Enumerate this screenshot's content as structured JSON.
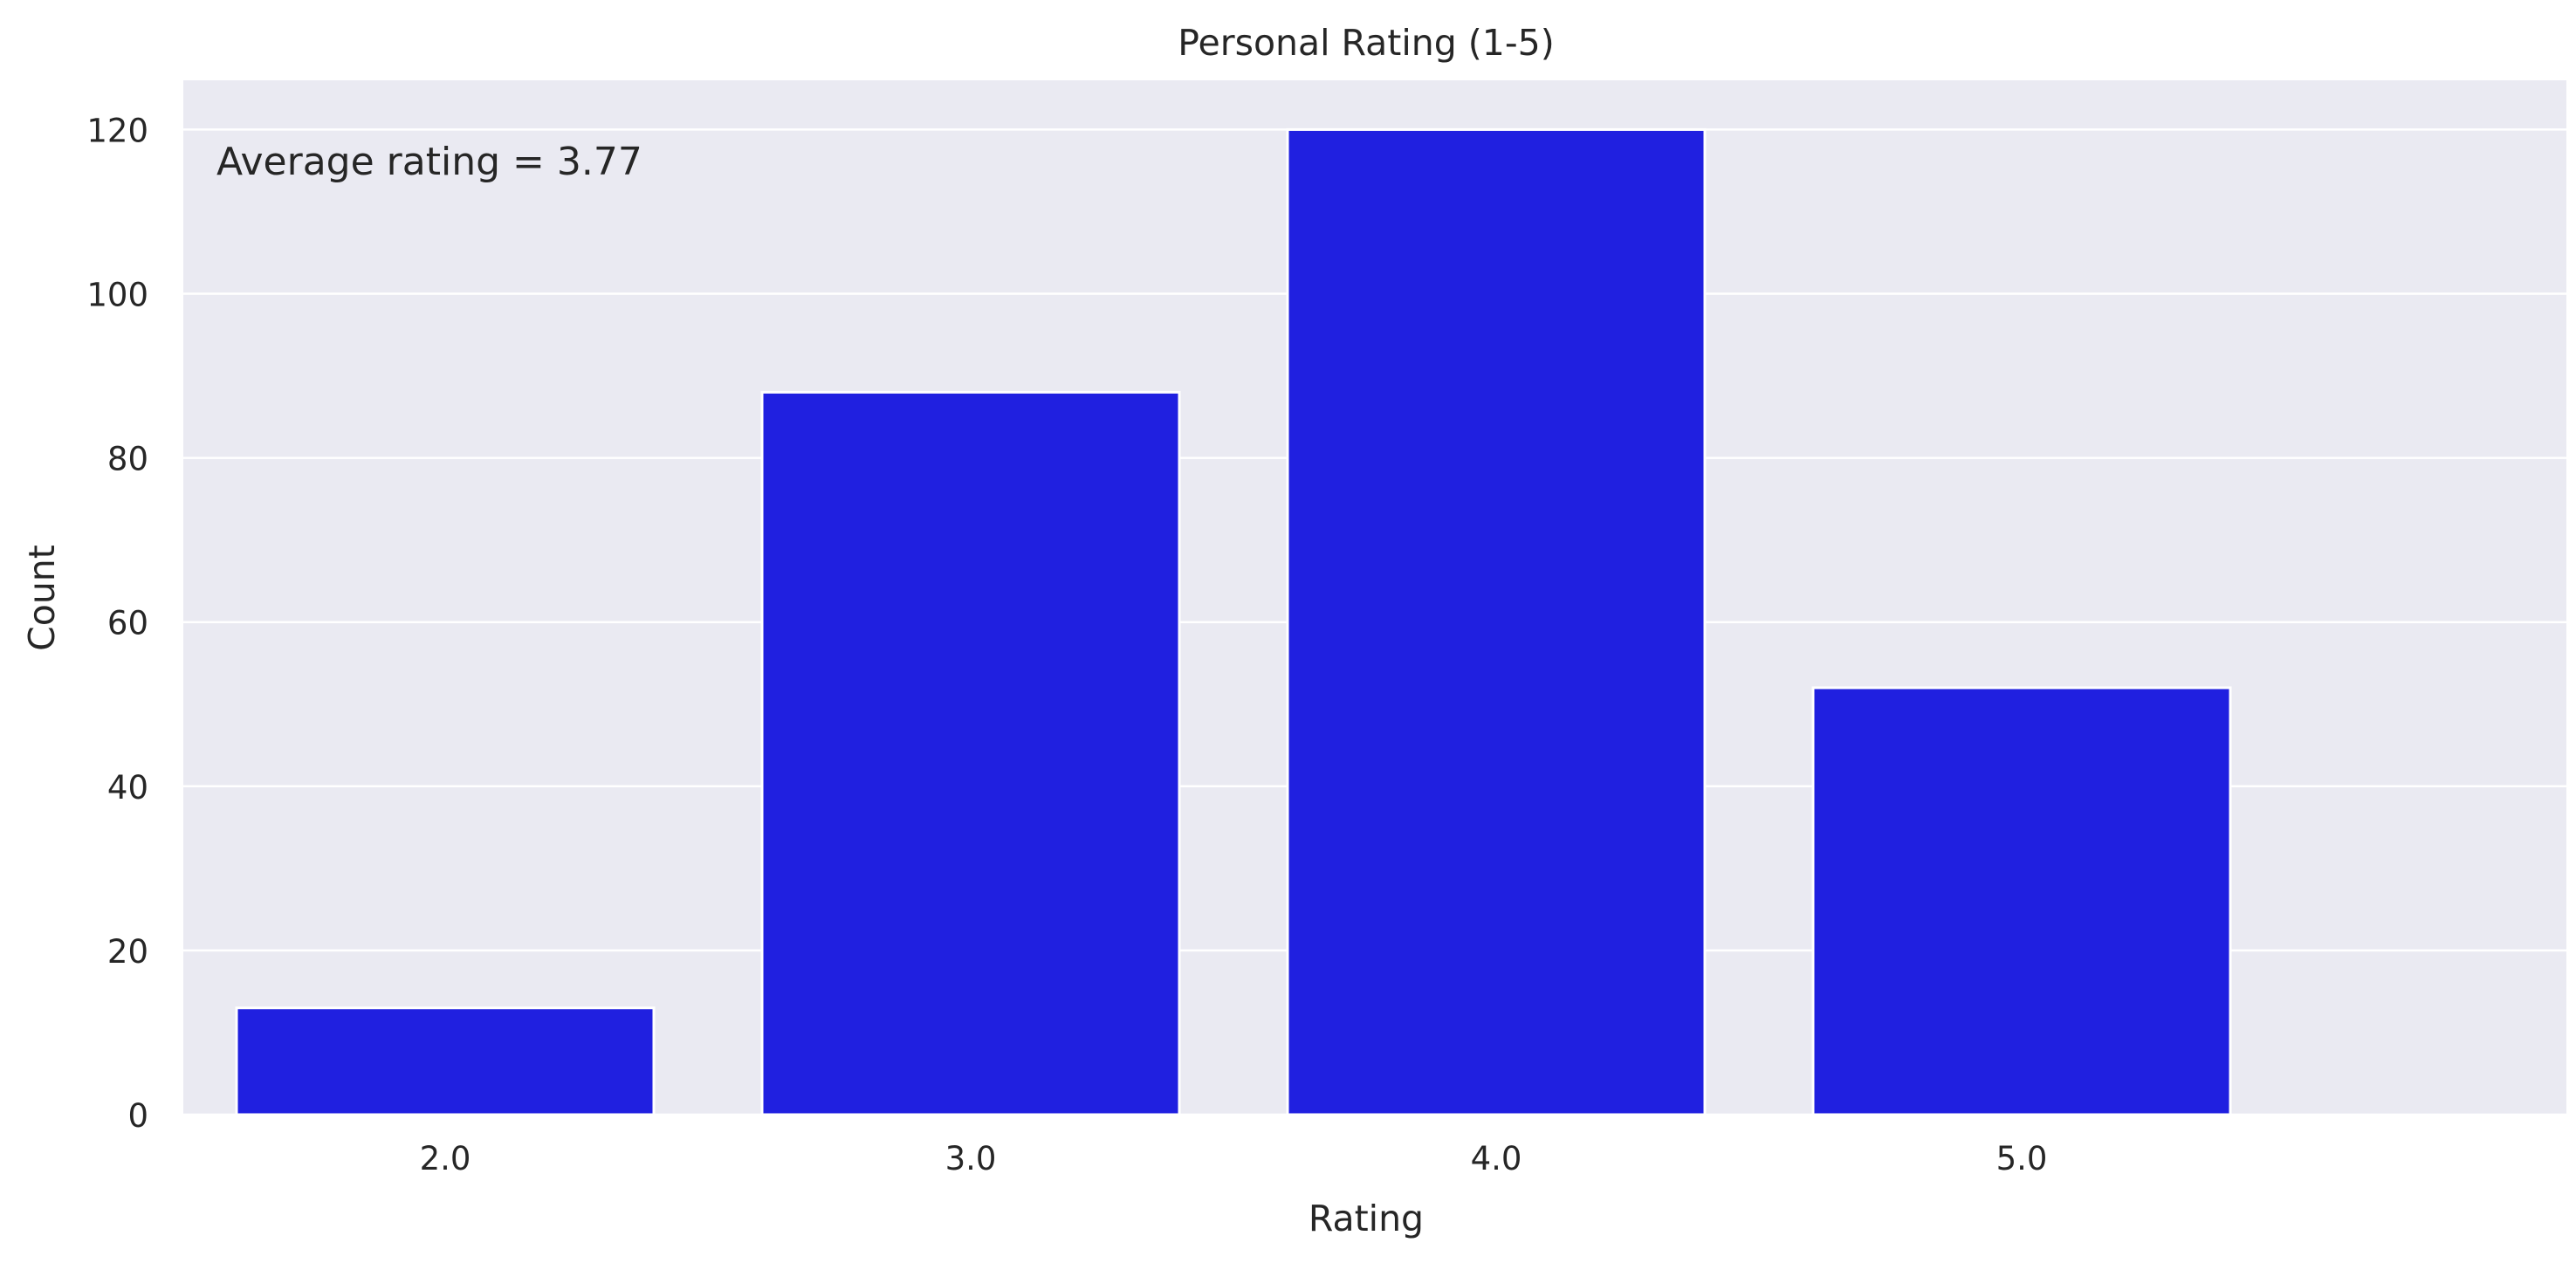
{
  "chart_data": {
    "type": "bar",
    "title": "Personal Rating (1-5)",
    "xlabel": "Rating",
    "ylabel": "Count",
    "categories": [
      "2.0",
      "3.0",
      "4.0",
      "5.0"
    ],
    "values": [
      13,
      88,
      120,
      52
    ],
    "ylim": [
      0,
      126
    ],
    "yticks": [
      0,
      20,
      40,
      60,
      80,
      100,
      120
    ],
    "grid": true,
    "annotation": "Average rating = 3.77",
    "colors": {
      "bar": "#2020e0",
      "plot_background": "#eaeaf2",
      "grid": "#ffffff",
      "text": "#262626"
    }
  }
}
